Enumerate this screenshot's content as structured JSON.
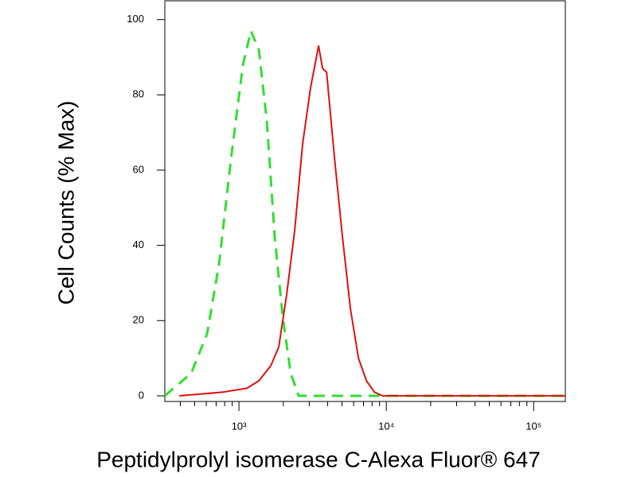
{
  "chart_data": {
    "type": "line",
    "xlabel": "Peptidylprolyl isomerase C-Alexa Fluor® 647",
    "ylabel": "Cell Counts (% Max)",
    "xscale": "log",
    "xlim": [
      314,
      164000
    ],
    "ylim": [
      -1.5,
      105
    ],
    "xticks": [
      {
        "value": 1000,
        "label": "10³"
      },
      {
        "value": 10000,
        "label": "10⁴"
      },
      {
        "value": 100000,
        "label": "10⁵"
      }
    ],
    "xminorticks": [
      400,
      500,
      600,
      700,
      800,
      900,
      2000,
      3000,
      4000,
      5000,
      6000,
      7000,
      8000,
      9000,
      20000,
      30000,
      40000,
      50000,
      60000,
      70000,
      80000,
      90000
    ],
    "yticks": [
      0,
      20,
      40,
      60,
      80,
      100
    ],
    "series": [
      {
        "color": "#33dd33",
        "dash": true,
        "x": [
          314,
          474,
          608,
          733,
          883,
          1064,
          1205,
          1365,
          1546,
          1751,
          1983,
          2245,
          2542,
          12000,
          164000
        ],
        "values": [
          0,
          6,
          16.5,
          35,
          63,
          88,
          97,
          92,
          73,
          42,
          21,
          6,
          0,
          0,
          0
        ]
      },
      {
        "color": "#dd1111",
        "dash": false,
        "x": [
          394,
          780,
          1132,
          1365,
          1645,
          1862,
          2109,
          2389,
          2705,
          3064,
          3472,
          3697,
          3935,
          4455,
          5048,
          5715,
          6471,
          7328,
          8299,
          9396,
          164000
        ],
        "values": [
          0,
          1,
          2,
          4,
          8,
          13,
          27,
          44,
          67,
          82,
          93,
          87,
          86,
          63,
          42,
          23,
          10,
          4,
          1,
          0,
          0
        ]
      }
    ]
  }
}
